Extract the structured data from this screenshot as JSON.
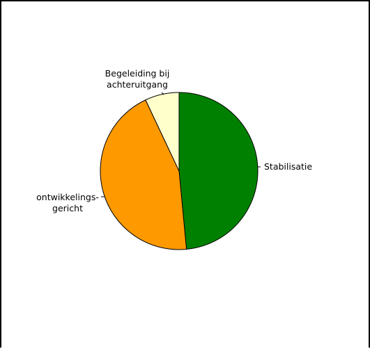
{
  "chart_data": {
    "type": "pie",
    "title": "",
    "slices": [
      {
        "label": [
          "Stabilisatie"
        ],
        "value": 48.5,
        "color": "#008000"
      },
      {
        "label": [
          "ontwikkelings-",
          "gericht"
        ],
        "value": 44.5,
        "color": "#ff9900"
      },
      {
        "label": [
          "Begeleiding bij",
          "achteruitgang"
        ],
        "value": 7.0,
        "color": "#ffffcc"
      }
    ]
  }
}
